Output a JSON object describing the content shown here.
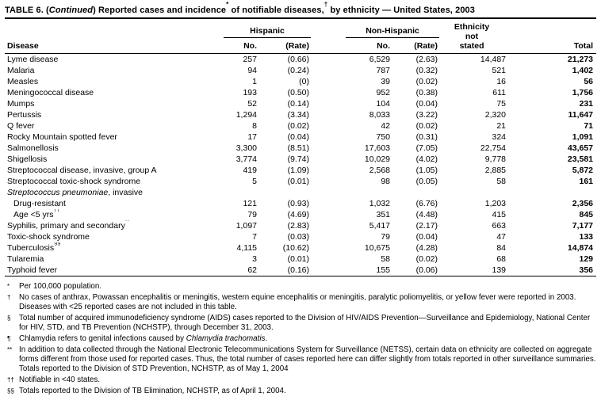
{
  "colors": {
    "text": "#000000",
    "background": "#ffffff",
    "rule": "#000000"
  },
  "title": {
    "prefix": "TABLE 6. (",
    "continued": "Continued",
    "part2": ") Reported cases and incidence",
    "sup1": "*",
    "part3": " of notifiable diseases,",
    "sup2": "†",
    "part4": " by ethnicity — United States, 2003"
  },
  "table": {
    "headers": {
      "disease": "Disease",
      "hispanic": "Hispanic",
      "non_hispanic": "Non-Hispanic",
      "no": "No.",
      "rate": "(Rate)",
      "ethnicity_line1": "Ethnicity",
      "ethnicity_line2": "not",
      "ethnicity_line3": "stated",
      "total": "Total"
    },
    "rows": [
      {
        "label": "Lyme disease",
        "cells": [
          "257",
          "(0.66)",
          "6,529",
          "(2.63)",
          "14,487",
          "21,273"
        ]
      },
      {
        "label": "Malaria",
        "cells": [
          "94",
          "(0.24)",
          "787",
          "(0.32)",
          "521",
          "1,402"
        ]
      },
      {
        "label": "Measles",
        "cells": [
          "1",
          "(0)",
          "39",
          "(0.02)",
          "16",
          "56"
        ]
      },
      {
        "label": "Meningococcal disease",
        "cells": [
          "193",
          "(0.50)",
          "952",
          "(0.38)",
          "611",
          "1,756"
        ]
      },
      {
        "label": "Mumps",
        "cells": [
          "52",
          "(0.14)",
          "104",
          "(0.04)",
          "75",
          "231"
        ]
      },
      {
        "label": "Pertussis",
        "cells": [
          "1,294",
          "(3.34)",
          "8,033",
          "(3.22)",
          "2,320",
          "11,647"
        ]
      },
      {
        "label": "Q fever",
        "cells": [
          "8",
          "(0.02)",
          "42",
          "(0.02)",
          "21",
          "71"
        ]
      },
      {
        "label": "Rocky Mountain spotted fever",
        "cells": [
          "17",
          "(0.04)",
          "750",
          "(0.31)",
          "324",
          "1,091"
        ]
      },
      {
        "label": "Salmonellosis",
        "cells": [
          "3,300",
          "(8.51)",
          "17,603",
          "(7.05)",
          "22,754",
          "43,657"
        ]
      },
      {
        "label": "Shigellosis",
        "cells": [
          "3,774",
          "(9.74)",
          "10,029",
          "(4.02)",
          "9,778",
          "23,581"
        ]
      },
      {
        "label": "Streptococcal disease, invasive, group A",
        "cells": [
          "419",
          "(1.09)",
          "2,568",
          "(1.05)",
          "2,885",
          "5,872"
        ]
      },
      {
        "label": "Streptococcal toxic-shock syndrome",
        "cells": [
          "5",
          "(0.01)",
          "98",
          "(0.05)",
          "58",
          "161"
        ]
      },
      {
        "italic": "Streptococcus pneumoniae",
        "label": ", invasive",
        "cells": [
          "",
          "",
          "",
          "",
          "",
          ""
        ]
      },
      {
        "label": "Drug-resistant",
        "indent": true,
        "cells": [
          "121",
          "(0.93)",
          "1,032",
          "(6.76)",
          "1,203",
          "2,356"
        ]
      },
      {
        "label": "Age <5 yrs",
        "sup": "††",
        "indent": true,
        "cells": [
          "79",
          "(4.69)",
          "351",
          "(4.48)",
          "415",
          "845"
        ]
      },
      {
        "label": "Syphilis, primary and secondary",
        "sup": "**",
        "cells": [
          "1,097",
          "(2.83)",
          "5,417",
          "(2.17)",
          "663",
          "7,177"
        ]
      },
      {
        "label": "Toxic-shock syndrome",
        "cells": [
          "7",
          "(0.03)",
          "79",
          "(0.04)",
          "47",
          "133"
        ]
      },
      {
        "label": "Tuberculosis",
        "sup": "§§",
        "cells": [
          "4,115",
          "(10.62)",
          "10,675",
          "(4.28)",
          "84",
          "14,874"
        ]
      },
      {
        "label": "Tularemia",
        "cells": [
          "3",
          "(0.01)",
          "58",
          "(0.02)",
          "68",
          "129"
        ]
      },
      {
        "label": "Typhoid fever",
        "cells": [
          "62",
          "(0.16)",
          "155",
          "(0.06)",
          "139",
          "356"
        ]
      }
    ]
  },
  "footnotes": [
    {
      "sym": "*",
      "text": "Per 100,000 population."
    },
    {
      "sym": "†",
      "text": "No cases of anthrax, Powassan encephalitis or meningitis, western equine encephalitis or meningitis, paralytic poliomyelitis, or yellow fever were reported in 2003. Diseases with <25 reported cases are not included in this table."
    },
    {
      "sym": "§",
      "text": "Total number of acquired immunodeficiency syndrome (AIDS) cases reported to the Division of HIV/AIDS Prevention—Surveillance and Epidemiology, National Center for HIV, STD, and TB Prevention (NCHSTP), through December 31, 2003."
    },
    {
      "sym": "¶",
      "text": "Chlamydia refers to genital infections caused by ",
      "italic": "Chlamydia trachomatis",
      "text_after": "."
    },
    {
      "sym": "**",
      "text": "In addition to data collected through the National Electronic Telecommunications System for Surveillance (NETSS), certain data on ethnicity are collected on aggregate forms different from those used for reported cases. Thus, the total number of cases reported here can differ slightly from totals reported in other surveillance summaries. Totals reported to the Division of STD Prevention, NCHSTP, as of May 1, 2004"
    },
    {
      "sym": "††",
      "text": "Notifiable in <40 states."
    },
    {
      "sym": "§§",
      "text": "Totals reported to the Division of TB Elimination, NCHSTP, as of April 1, 2004."
    }
  ]
}
